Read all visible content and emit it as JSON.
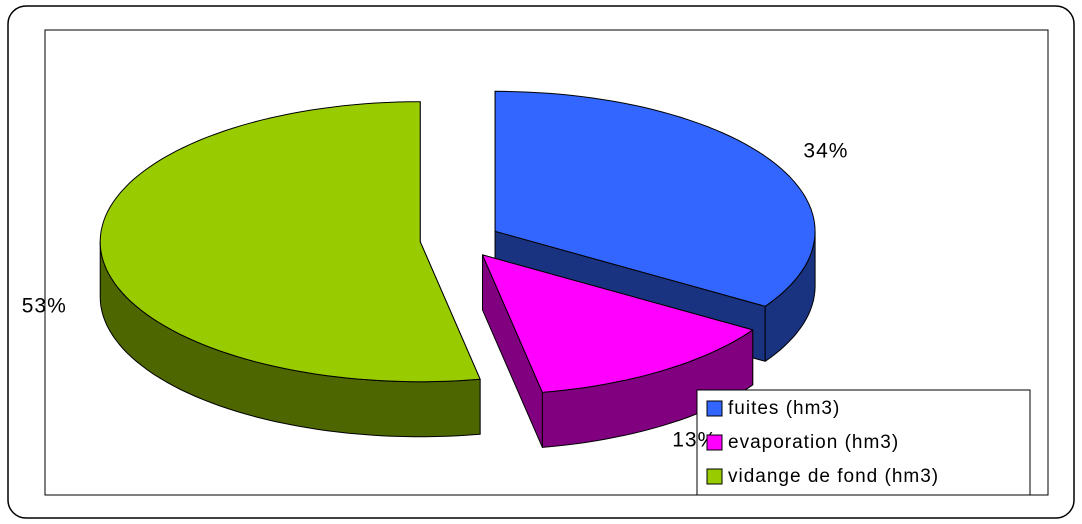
{
  "chart_data": {
    "type": "pie",
    "style": "3d-exploded",
    "categories": [
      "fuites (hm3)",
      "evaporation (hm3)",
      "vidange de fond (hm3)"
    ],
    "values": [
      34,
      13,
      53
    ],
    "value_labels": [
      "34%",
      "13%",
      "53%"
    ],
    "colors": [
      "#3366ff",
      "#ff00ff",
      "#99cc00"
    ],
    "legend": "bottom-right"
  }
}
